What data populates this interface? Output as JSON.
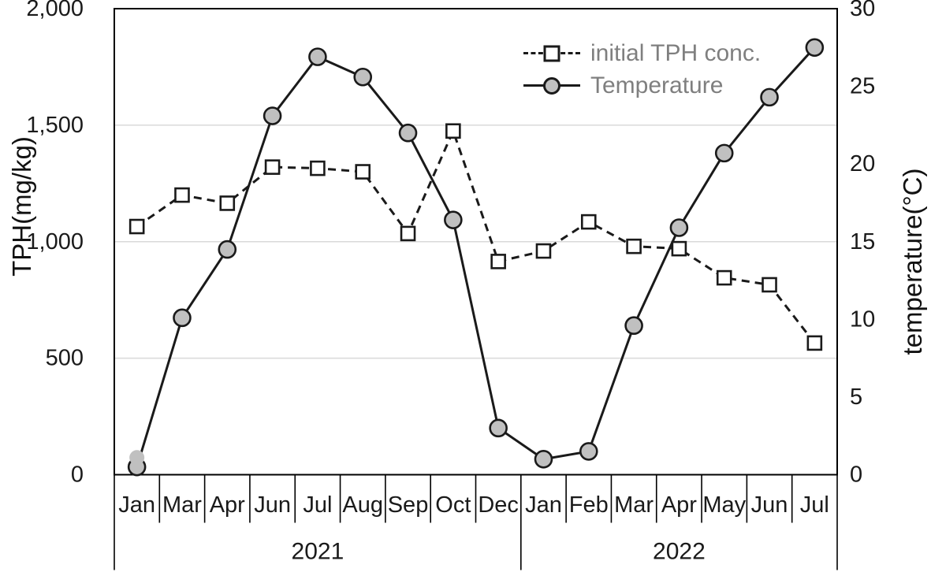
{
  "chart_data": {
    "type": "line",
    "categories": [
      "Jan",
      "Mar",
      "Apr",
      "Jun",
      "Jul",
      "Aug",
      "Sep",
      "Oct",
      "Dec",
      "Jan",
      "Feb",
      "Mar",
      "Apr",
      "May",
      "Jun",
      "Jul"
    ],
    "year_groups": [
      {
        "label": "2021",
        "count": 9
      },
      {
        "label": "2022",
        "count": 7
      }
    ],
    "series": [
      {
        "name": "initial TPH conc.",
        "axis": "left",
        "line_style": "dashed",
        "marker": "open-square",
        "values": [
          1065,
          1200,
          1165,
          1320,
          1315,
          1300,
          1035,
          1475,
          915,
          960,
          1085,
          980,
          970,
          845,
          815,
          565
        ]
      },
      {
        "name": "Temperature",
        "axis": "right",
        "line_style": "solid",
        "marker": "gray-circle",
        "values": [
          0.5,
          10.1,
          14.5,
          23.1,
          26.9,
          25.6,
          22.0,
          16.4,
          3.0,
          1.0,
          1.5,
          9.6,
          15.9,
          20.7,
          24.3,
          27.5
        ],
        "extra_marker": {
          "index": 0,
          "value": 1.1
        }
      }
    ],
    "y_left": {
      "title": "TPH(mg/kg)",
      "min": 0,
      "max": 2000,
      "tick_step": 500,
      "tick_labels": [
        "0",
        "500",
        "1,000",
        "1,500",
        "2,000"
      ]
    },
    "y_right": {
      "title": "temperature(°C)",
      "min": 0,
      "max": 30,
      "tick_step": 5,
      "tick_labels": [
        "0",
        "5",
        "10",
        "15",
        "20",
        "25",
        "30"
      ]
    },
    "grid": "horizontal",
    "legend_position": "top-right"
  },
  "colors": {
    "line": "#1a1a1a",
    "marker_fill": "#c0c0c0",
    "square_fill": "#ffffff",
    "grid": "#d9d9d9",
    "legend_text": "#7f7f7f",
    "background": "#ffffff"
  }
}
